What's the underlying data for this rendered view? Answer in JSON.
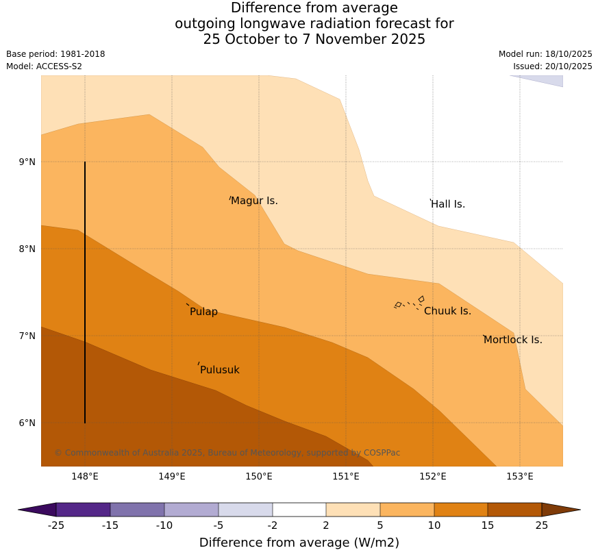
{
  "title": {
    "line1": "Difference from average",
    "line2": "outgoing longwave radiation forecast for",
    "line3": "25 October to 7 November 2025"
  },
  "meta": {
    "base_period": "Base period: 1981-2018",
    "model": "Model: ACCESS-S2",
    "model_run": "Model run: 18/10/2025",
    "issued": "Issued: 20/10/2025"
  },
  "map": {
    "lat_labels": [
      "9°N",
      "8°N",
      "7°N",
      "6°N"
    ],
    "lon_labels": [
      "148°E",
      "149°E",
      "150°E",
      "151°E",
      "152°E",
      "153°E"
    ],
    "places": [
      {
        "name": "Magur Is."
      },
      {
        "name": "Hall Is."
      },
      {
        "name": "Pulap"
      },
      {
        "name": "Chuuk Is."
      },
      {
        "name": "Mortlock Is."
      },
      {
        "name": "Pulusuk"
      }
    ],
    "copyright": "© Commonwealth of Australia 2025, Bureau of Meteorology, supported by COSPPac"
  },
  "colorbar": {
    "ticks": [
      "-25",
      "-15",
      "-10",
      "-5",
      "-2",
      "2",
      "5",
      "10",
      "15",
      "25"
    ],
    "colors": [
      "#3b0a5e",
      "#542788",
      "#8073ac",
      "#b2abd2",
      "#d8daeb",
      "#ffffff",
      "#fee0b6",
      "#fbb55f",
      "#e08214",
      "#b35806",
      "#7f3b08"
    ],
    "label": "Difference from average (W/m2)"
  }
}
